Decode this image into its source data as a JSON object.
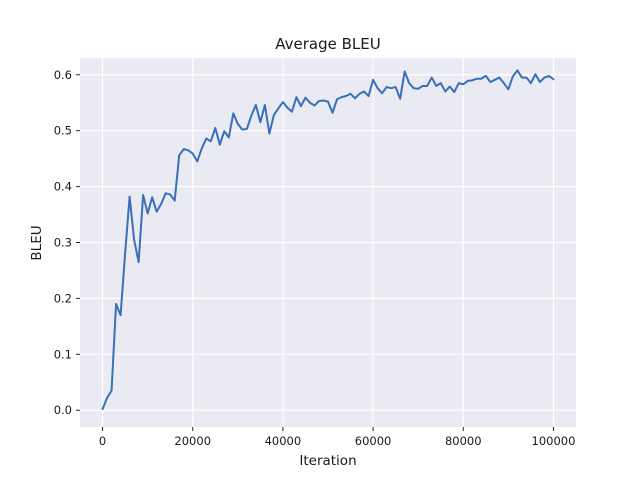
{
  "chart_data": {
    "type": "line",
    "title": "Average BLEU",
    "xlabel": "Iteration",
    "ylabel": "BLEU",
    "xlim": [
      -5000,
      105000
    ],
    "ylim": [
      -0.03,
      0.63
    ],
    "xticks": [
      0,
      20000,
      40000,
      60000,
      80000,
      100000
    ],
    "xtick_labels": [
      "0",
      "20000",
      "40000",
      "60000",
      "80000",
      "100000"
    ],
    "yticks": [
      0.0,
      0.1,
      0.2,
      0.3,
      0.4,
      0.5,
      0.6
    ],
    "ytick_labels": [
      "0.0",
      "0.1",
      "0.2",
      "0.3",
      "0.4",
      "0.5",
      "0.6"
    ],
    "grid": true,
    "background": "#eaeaf2",
    "series": [
      {
        "color": "#3a6fba",
        "x": [
          0,
          1000,
          2000,
          3000,
          4000,
          5000,
          6000,
          7000,
          8000,
          9000,
          10000,
          11000,
          12000,
          13000,
          14000,
          15000,
          16000,
          17000,
          18000,
          19000,
          20000,
          21000,
          22000,
          23000,
          24000,
          25000,
          26000,
          27000,
          28000,
          29000,
          30000,
          31000,
          32000,
          33000,
          34000,
          35000,
          36000,
          37000,
          38000,
          39000,
          40000,
          41000,
          42000,
          43000,
          44000,
          45000,
          46000,
          47000,
          48000,
          49000,
          50000,
          51000,
          52000,
          53000,
          54000,
          55000,
          56000,
          57000,
          58000,
          59000,
          60000,
          61000,
          62000,
          63000,
          64000,
          65000,
          66000,
          67000,
          68000,
          69000,
          70000,
          71000,
          72000,
          73000,
          74000,
          75000,
          76000,
          77000,
          78000,
          79000,
          80000,
          81000,
          82000,
          83000,
          84000,
          85000,
          86000,
          87000,
          88000,
          89000,
          90000,
          91000,
          92000,
          93000,
          94000,
          95000,
          96000,
          97000,
          98000,
          99000,
          100000
        ],
        "y": [
          0.002,
          0.022,
          0.035,
          0.19,
          0.17,
          0.28,
          0.382,
          0.305,
          0.265,
          0.385,
          0.352,
          0.381,
          0.355,
          0.369,
          0.388,
          0.386,
          0.375,
          0.456,
          0.467,
          0.465,
          0.459,
          0.445,
          0.468,
          0.486,
          0.481,
          0.505,
          0.475,
          0.499,
          0.488,
          0.531,
          0.512,
          0.502,
          0.503,
          0.527,
          0.546,
          0.515,
          0.546,
          0.495,
          0.528,
          0.54,
          0.551,
          0.541,
          0.534,
          0.56,
          0.544,
          0.559,
          0.55,
          0.545,
          0.553,
          0.554,
          0.552,
          0.532,
          0.556,
          0.56,
          0.562,
          0.566,
          0.558,
          0.566,
          0.57,
          0.562,
          0.591,
          0.576,
          0.567,
          0.578,
          0.576,
          0.578,
          0.557,
          0.606,
          0.585,
          0.576,
          0.575,
          0.58,
          0.58,
          0.595,
          0.58,
          0.585,
          0.57,
          0.579,
          0.569,
          0.585,
          0.583,
          0.589,
          0.59,
          0.593,
          0.593,
          0.598,
          0.587,
          0.591,
          0.595,
          0.585,
          0.574,
          0.597,
          0.608,
          0.595,
          0.595,
          0.585,
          0.601,
          0.587,
          0.595,
          0.598,
          0.592
        ]
      }
    ]
  }
}
